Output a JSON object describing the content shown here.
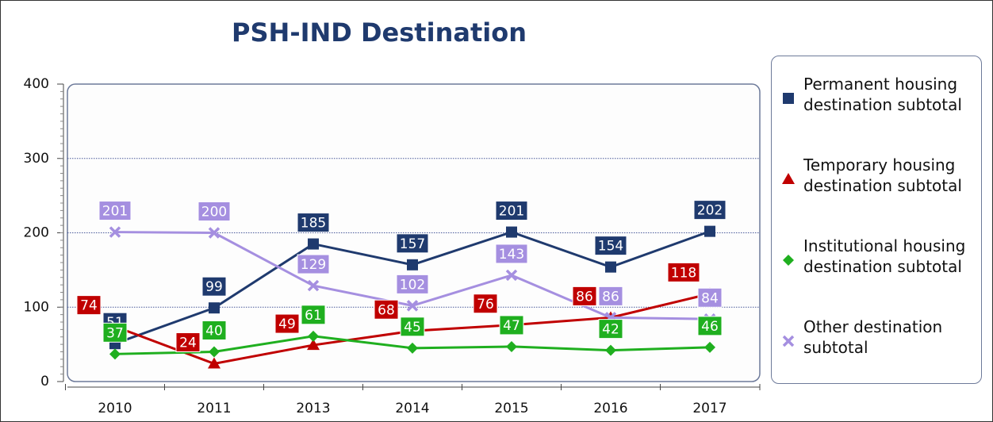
{
  "chart_data": {
    "type": "line",
    "title": "PSH-IND Destination",
    "categories": [
      "2010",
      "2011",
      "2013",
      "2014",
      "2015",
      "2016",
      "2017"
    ],
    "series": [
      {
        "name": "Permanent housing destination subtotal",
        "color": "#1f3a6e",
        "marker": "square",
        "values": [
          51,
          99,
          185,
          157,
          201,
          154,
          202
        ]
      },
      {
        "name": "Temporary housing destination subtotal",
        "color": "#c00000",
        "marker": "triangle",
        "values": [
          74,
          24,
          49,
          68,
          76,
          86,
          118
        ]
      },
      {
        "name": "Institutional housing destination subtotal",
        "color": "#1faf1f",
        "marker": "diamond",
        "values": [
          37,
          40,
          61,
          45,
          47,
          42,
          46
        ]
      },
      {
        "name": "Other destination subtotal",
        "color": "#a58fe0",
        "marker": "x",
        "values": [
          201,
          200,
          129,
          102,
          143,
          86,
          84
        ]
      }
    ],
    "ylim": [
      0,
      400
    ],
    "yticks": [
      0,
      100,
      200,
      300,
      400
    ],
    "grid": true,
    "legend": "right"
  }
}
